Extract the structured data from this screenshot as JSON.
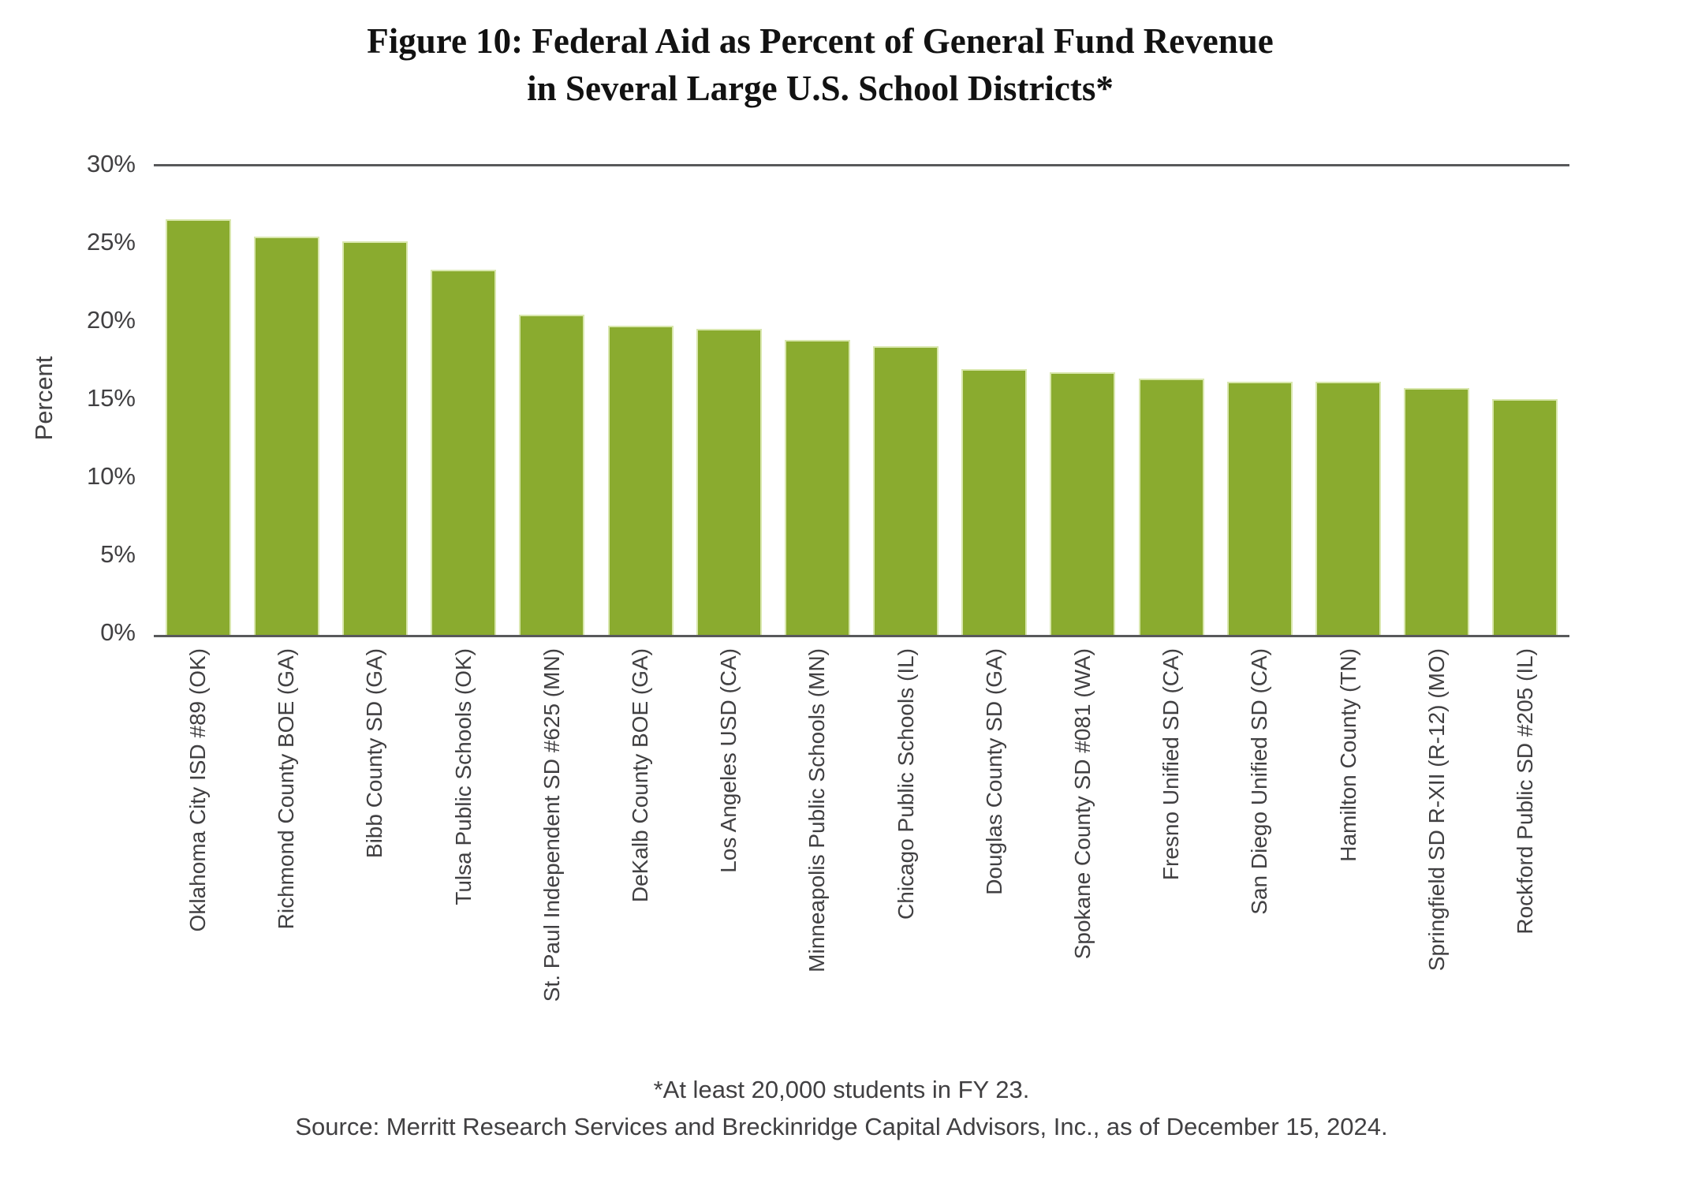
{
  "figure": {
    "title_line1": "Figure 10: Federal Aid as Percent of General Fund Revenue",
    "title_line2": "in Several Large U.S. School Districts*",
    "footnote": "*At least 20,000 students in FY 23.",
    "source": "Source: Merritt Research Services and Breckinridge Capital Advisors, Inc., as of December 15, 2024."
  },
  "chart_data": {
    "type": "bar",
    "title": "Figure 10: Federal Aid as Percent of General Fund Revenue in Several Large U.S. School Districts*",
    "xlabel": "",
    "ylabel": "Percent",
    "ylim": [
      0,
      30
    ],
    "yticks": [
      0,
      5,
      10,
      15,
      20,
      25,
      30
    ],
    "ytick_suffix": "%",
    "legend_position": "none",
    "grid": "horizontal rules at 30% (top) and 0% (baseline) only",
    "bar_color": "#8aab2f",
    "bar_edge_color": "#d9e7ae",
    "axis_line_color": "#58595b",
    "text_color": "#414042",
    "categories": [
      "Oklahoma City ISD #89 (OK)",
      "Richmond County BOE (GA)",
      "Bibb County SD (GA)",
      "Tulsa Public Schools (OK)",
      "St. Paul Independent SD #625 (MN)",
      "DeKalb County BOE (GA)",
      "Los Angeles USD (CA)",
      "Minneapolis Public Schools (MN)",
      "Chicago Public Schools (IL)",
      "Douglas County SD (GA)",
      "Spokane County SD #081 (WA)",
      "Fresno Unified SD (CA)",
      "San Diego Unified SD (CA)",
      "Hamilton County (TN)",
      "Springfield SD R-XII (R-12) (MO)",
      "Rockford Public SD #205 (IL)"
    ],
    "values": [
      26.6,
      25.5,
      25.2,
      23.4,
      20.5,
      19.8,
      19.6,
      18.9,
      18.5,
      17.0,
      16.8,
      16.4,
      16.2,
      16.2,
      15.8,
      15.1
    ]
  }
}
